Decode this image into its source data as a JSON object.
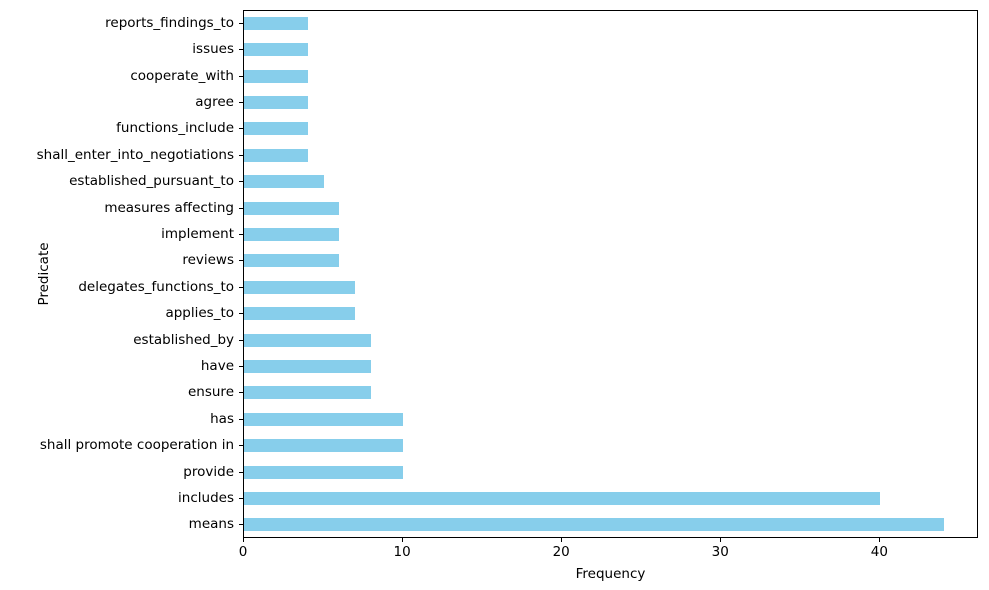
{
  "chart_data": {
    "type": "bar",
    "orientation": "horizontal",
    "title": "",
    "xlabel": "Frequency",
    "ylabel": "Predicate",
    "category_order": "top-to-bottom",
    "categories": [
      "reports_findings_to",
      "issues",
      "cooperate_with",
      "agree",
      "functions_include",
      "shall_enter_into_negotiations",
      "established_pursuant_to",
      "measures affecting",
      "implement",
      "reviews",
      "delegates_functions_to",
      "applies_to",
      "established_by",
      "have",
      "ensure",
      "has",
      "shall promote cooperation in",
      "provide",
      "includes",
      "means"
    ],
    "values": [
      4,
      4,
      4,
      4,
      4,
      4,
      5,
      6,
      6,
      6,
      7,
      7,
      8,
      8,
      8,
      10,
      10,
      10,
      40,
      44
    ],
    "xticks": [
      0,
      10,
      20,
      30,
      40
    ],
    "xlim": [
      0,
      46.2
    ],
    "grid": false,
    "bar_color": "#87CEEB"
  }
}
